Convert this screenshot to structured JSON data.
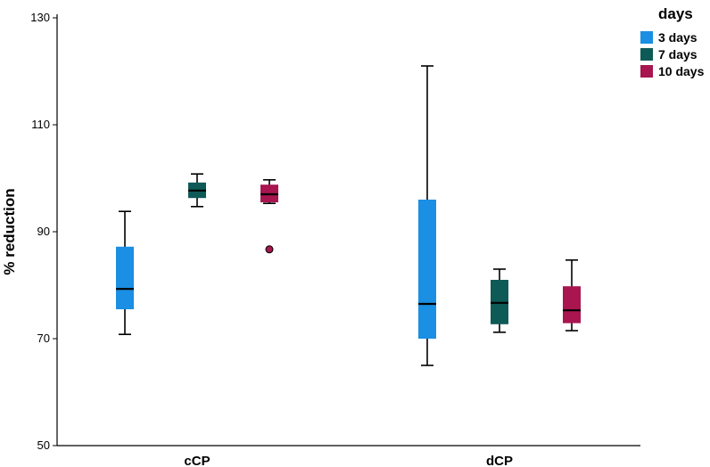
{
  "chart_data": {
    "type": "box",
    "title": "",
    "xlabel": "",
    "ylabel": "% reduction",
    "ylim": [
      50,
      130
    ],
    "yticks": [
      "130",
      "110",
      "90",
      "70",
      "50"
    ],
    "categories": [
      "cCP",
      "dCP"
    ],
    "legend": {
      "title": "days",
      "position": "top-right",
      "entries": [
        "3 days",
        "7 days",
        "10 days"
      ]
    },
    "series": [
      {
        "name": "3 days",
        "color": "#1a8fe3",
        "boxes": [
          {
            "category": "cCP",
            "min": 70.8,
            "q1": 75.5,
            "median": 79.3,
            "q3": 87.2,
            "max": 93.8,
            "outliers": []
          },
          {
            "category": "dCP",
            "min": 65.0,
            "q1": 70.0,
            "median": 76.5,
            "q3": 96.0,
            "max": 121.0,
            "outliers": []
          }
        ]
      },
      {
        "name": "7 days",
        "color": "#0e5a57",
        "boxes": [
          {
            "category": "cCP",
            "min": 94.7,
            "q1": 96.3,
            "median": 97.7,
            "q3": 99.2,
            "max": 100.8,
            "outliers": []
          },
          {
            "category": "dCP",
            "min": 71.2,
            "q1": 72.7,
            "median": 76.7,
            "q3": 81.0,
            "max": 83.0,
            "outliers": []
          }
        ]
      },
      {
        "name": "10 days",
        "color": "#a8154f",
        "boxes": [
          {
            "category": "cCP",
            "min": 95.3,
            "q1": 95.5,
            "median": 97.0,
            "q3": 98.8,
            "max": 99.7,
            "outliers": [
              86.7
            ]
          },
          {
            "category": "dCP",
            "min": 71.5,
            "q1": 72.9,
            "median": 75.3,
            "q3": 79.8,
            "max": 84.7,
            "outliers": []
          }
        ]
      }
    ]
  }
}
